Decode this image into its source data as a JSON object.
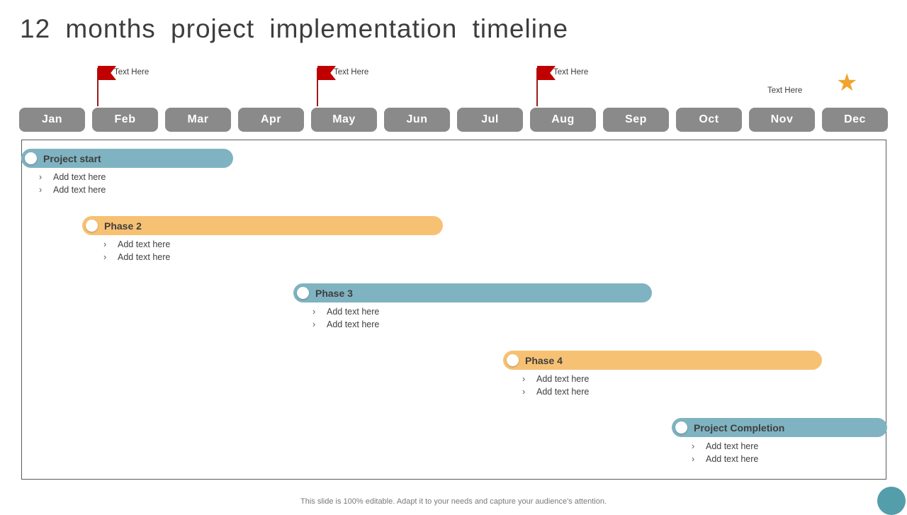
{
  "slide": {
    "title": "12 months project implementation timeline",
    "footer": "This slide is 100% editable. Adapt it to your needs and capture your audience's attention."
  },
  "months": [
    "Jan",
    "Feb",
    "Mar",
    "Apr",
    "May",
    "Jun",
    "Jul",
    "Aug",
    "Sep",
    "Oct",
    "Nov",
    "Dec"
  ],
  "markers": {
    "flags": [
      {
        "label": "Text Here",
        "month": "Feb"
      },
      {
        "label": "Text Here",
        "month": "May"
      },
      {
        "label": "Text Here",
        "month": "Aug"
      }
    ],
    "star": {
      "label": "Text Here",
      "month": "Dec"
    }
  },
  "phases": [
    {
      "name": "Project start",
      "color": "#7fb3c1",
      "start_month": "Jan",
      "end_month": "Mar",
      "bullets": [
        "Add text here",
        "Add text here"
      ]
    },
    {
      "name": "Phase 2",
      "color": "#f7c173",
      "start_month": "Feb",
      "end_month": "Jun",
      "bullets": [
        "Add text here",
        "Add text here"
      ]
    },
    {
      "name": "Phase 3",
      "color": "#7fb3c1",
      "start_month": "Apr",
      "end_month": "Sep",
      "bullets": [
        "Add text here",
        "Add text here"
      ]
    },
    {
      "name": "Phase 4",
      "color": "#f7c173",
      "start_month": "Jul",
      "end_month": "Nov",
      "bullets": [
        "Add text here",
        "Add text here"
      ]
    },
    {
      "name": "Project Completion",
      "color": "#7fb3c1",
      "start_month": "Oct",
      "end_month": "Dec",
      "bullets": [
        "Add text here",
        "Add text here"
      ]
    }
  ],
  "glyphs": {
    "bullet": "›",
    "star": "★"
  },
  "colors": {
    "teal": "#7fb3c1",
    "orange": "#f7c173",
    "month_gray": "#8a8a8a",
    "flag_red": "#c00000",
    "pole_red": "#9c1c1c",
    "star_gold": "#f0a42e",
    "accent_circle": "#549dab",
    "text_dark": "#3d3d3d",
    "footer_gray": "#7a7a7a"
  }
}
